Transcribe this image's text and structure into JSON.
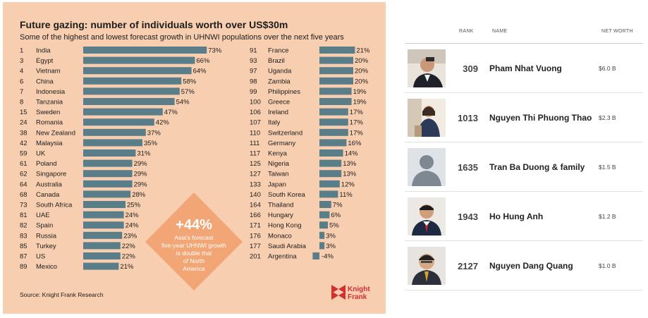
{
  "chart": {
    "title": "Future gazing: number of individuals worth over US$30m",
    "subtitle": "Some of the highest and lowest forecast growth in UHNWI populations over the next five years",
    "source": "Source: Knight Frank Research",
    "callout_value": "+44%",
    "callout_lines": [
      "Asia's forecast",
      "five-year UHNWI growth",
      "is double that",
      "of North",
      "America"
    ],
    "logo_lines": [
      "Knight",
      "Frank"
    ],
    "colors": {
      "background": "#f8ceb0",
      "bar": "#5a7e89",
      "diamond": "#f2a676",
      "brand": "#d32f2f"
    }
  },
  "chart_data": {
    "type": "bar",
    "orientation": "horizontal",
    "value_suffix": "%",
    "groups": [
      {
        "ranks": [
          "1",
          "3",
          "4",
          "6",
          "7",
          "8",
          "15",
          "24",
          "38",
          "42",
          "59",
          "61",
          "62",
          "64",
          "68",
          "73",
          "81",
          "82",
          "83",
          "85",
          "87",
          "89"
        ],
        "categories": [
          "India",
          "Egypt",
          "Vietnam",
          "China",
          "Indonesia",
          "Tanzania",
          "Sweden",
          "Romania",
          "New Zealand",
          "Malaysia",
          "UK",
          "Poland",
          "Singapore",
          "Australia",
          "Canada",
          "South Africa",
          "UAE",
          "Spain",
          "Russia",
          "Turkey",
          "US",
          "Mexico"
        ],
        "values": [
          73,
          66,
          64,
          58,
          57,
          54,
          47,
          42,
          37,
          35,
          31,
          29,
          29,
          29,
          28,
          25,
          24,
          24,
          23,
          22,
          22,
          21
        ],
        "labels": [
          "73%",
          "66%",
          "64%",
          "58%",
          "57%",
          "54%",
          "47%",
          "42%",
          "37%",
          "35%",
          "31%",
          "29%",
          "29%",
          "29%",
          "28%",
          "25%",
          "24%",
          "24%",
          "23%",
          "22%",
          "22%",
          "21%"
        ]
      },
      {
        "ranks": [
          "91",
          "93",
          "97",
          "98",
          "99",
          "100",
          "106",
          "107",
          "110",
          "111",
          "117",
          "125",
          "127",
          "133",
          "140",
          "164",
          "166",
          "171",
          "176",
          "177",
          "201"
        ],
        "categories": [
          "France",
          "Brazil",
          "Uganda",
          "Zambia",
          "Philippines",
          "Greece",
          "Ireland",
          "Italy",
          "Switzerland",
          "Germany",
          "Kenya",
          "Nigeria",
          "Taiwan",
          "Japan",
          "South Korea",
          "Thailand",
          "Hungary",
          "Hong Kong",
          "Monaco",
          "Saudi Arabia",
          "Argentina"
        ],
        "values": [
          21,
          20,
          20,
          20,
          19,
          19,
          17,
          17,
          17,
          16,
          14,
          13,
          13,
          12,
          11,
          7,
          6,
          5,
          3,
          3,
          -4
        ],
        "labels": [
          "21%",
          "20%",
          "20%",
          "20%",
          "19%",
          "19%",
          "17%",
          "17%",
          "17%",
          "16%",
          "14%",
          "13%",
          "13%",
          "12%",
          "11%",
          "7%",
          "6%",
          "5%",
          "3%",
          "3%",
          "-4%"
        ]
      }
    ]
  },
  "list": {
    "headers": {
      "rank": "RANK",
      "name": "NAME",
      "net_worth": "NET WORTH"
    },
    "rows": [
      {
        "rank": "309",
        "name": "Pham Nhat Vuong",
        "net_worth": "$6.0 B"
      },
      {
        "rank": "1013",
        "name": "Nguyen Thi Phuong Thao",
        "net_worth": "$2.3 B"
      },
      {
        "rank": "1635",
        "name": "Tran Ba Duong & family",
        "net_worth": "$1.5 B"
      },
      {
        "rank": "1943",
        "name": "Ho Hung Anh",
        "net_worth": "$1.2 B"
      },
      {
        "rank": "2127",
        "name": "Nguyen Dang Quang",
        "net_worth": "$1.0 B"
      }
    ]
  }
}
